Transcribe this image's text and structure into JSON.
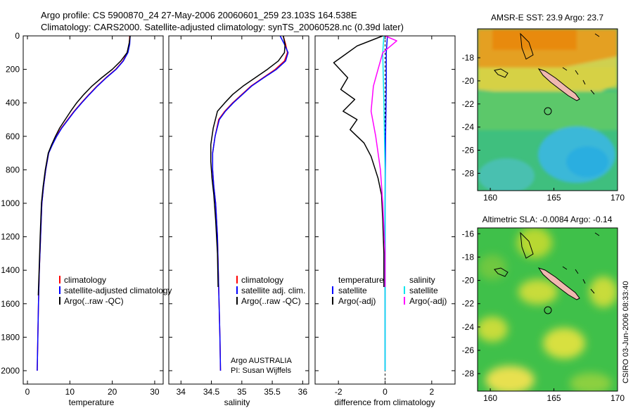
{
  "header": {
    "line1": "Argo profile: CS 5900870_24 27-May-2006 20060601_259 23.103S 164.538E",
    "line2": "Climatology: CARS2000. Satellite-adjusted climatology: synTS_20060528.nc (0.39d later)"
  },
  "colors": {
    "climatology": "#ff0000",
    "satellite": "#0000ff",
    "argo": "#000000",
    "sat_salinity": "#00e5ee",
    "argo_adj_salinity": "#ff00ff"
  },
  "chart_data": [
    {
      "type": "line",
      "id": "temperature",
      "xlabel": "temperature",
      "ylabel": "",
      "xlim": [
        -1,
        32
      ],
      "ylim": [
        2080,
        0
      ],
      "xticks": [
        0,
        10,
        20,
        30
      ],
      "yticks": [
        0,
        200,
        400,
        600,
        800,
        1000,
        1200,
        1400,
        1600,
        1800,
        2000
      ],
      "legend": [
        "climatology",
        "satellite-adjusted climatology",
        "Argo(..raw -QC)"
      ],
      "series": [
        {
          "name": "climatology",
          "color": "#ff0000",
          "x": [
            24.1,
            24.0,
            23.6,
            22.5,
            20.8,
            18.5,
            16.4,
            14.5,
            12.7,
            11.0,
            9.5,
            8.0,
            6.8,
            5.8,
            5.0,
            4.3,
            3.8,
            3.4,
            3.1,
            2.8,
            2.6,
            2.45,
            2.3
          ],
          "y": [
            0,
            50,
            100,
            150,
            200,
            250,
            300,
            350,
            400,
            450,
            500,
            550,
            600,
            650,
            700,
            800,
            900,
            1000,
            1200,
            1400,
            1600,
            1800,
            2000
          ]
        },
        {
          "name": "satellite-adjusted climatology",
          "color": "#0000ff",
          "x": [
            24.2,
            24.1,
            23.7,
            22.6,
            20.9,
            18.6,
            16.5,
            14.6,
            12.8,
            11.1,
            9.6,
            8.1,
            6.9,
            5.9,
            5.0,
            4.3,
            3.8,
            3.4,
            3.1,
            2.8,
            2.6,
            2.45,
            2.3
          ],
          "y": [
            0,
            50,
            100,
            150,
            200,
            250,
            300,
            350,
            400,
            450,
            500,
            550,
            600,
            650,
            700,
            800,
            900,
            1000,
            1200,
            1400,
            1600,
            1800,
            2000
          ]
        },
        {
          "name": "Argo(..raw -QC)",
          "color": "#000000",
          "x": [
            24.2,
            24.0,
            23.5,
            22.0,
            20.0,
            17.5,
            15.2,
            13.3,
            11.6,
            10.2,
            8.9,
            7.6,
            6.6,
            5.7,
            4.9,
            4.2,
            3.7,
            3.3,
            3.0,
            2.75,
            2.55
          ],
          "y": [
            0,
            40,
            100,
            150,
            200,
            250,
            300,
            350,
            400,
            450,
            500,
            550,
            600,
            650,
            700,
            800,
            900,
            1000,
            1200,
            1400,
            1550
          ]
        }
      ]
    },
    {
      "type": "line",
      "id": "salinity",
      "xlabel": "salinity",
      "ylabel": "",
      "xlim": [
        33.8,
        36.1
      ],
      "ylim": [
        2080,
        0
      ],
      "xticks": [
        34,
        34.5,
        35,
        35.5,
        36
      ],
      "yticks": [
        0,
        200,
        400,
        600,
        800,
        1000,
        1200,
        1400,
        1600,
        1800,
        2000
      ],
      "legend": [
        "climatology",
        "satellite adj. clim.",
        "Argo(..raw -QC)"
      ],
      "annotation": [
        "Argo AUSTRALIA",
        "PI: Susan Wijffels"
      ],
      "series": [
        {
          "name": "climatology",
          "color": "#ff0000",
          "x": [
            35.68,
            35.72,
            35.75,
            35.7,
            35.55,
            35.35,
            35.15,
            35.0,
            34.85,
            34.72,
            34.62,
            34.56,
            34.52,
            34.52,
            34.54,
            34.57,
            34.6,
            34.62,
            34.64,
            34.65
          ],
          "y": [
            0,
            50,
            100,
            150,
            200,
            250,
            300,
            350,
            400,
            450,
            500,
            600,
            700,
            800,
            900,
            1000,
            1200,
            1500,
            1800,
            2000
          ]
        },
        {
          "name": "satellite adj. clim.",
          "color": "#0000ff",
          "x": [
            35.63,
            35.7,
            35.76,
            35.72,
            35.57,
            35.36,
            35.16,
            35.01,
            34.86,
            34.73,
            34.63,
            34.56,
            34.52,
            34.52,
            34.54,
            34.57,
            34.6,
            34.62,
            34.64,
            34.65
          ],
          "y": [
            0,
            50,
            100,
            150,
            200,
            250,
            300,
            350,
            400,
            450,
            500,
            600,
            700,
            800,
            900,
            1000,
            1200,
            1500,
            1800,
            2000
          ]
        },
        {
          "name": "Argo(..raw -QC)",
          "color": "#000000",
          "x": [
            35.68,
            35.71,
            35.7,
            35.6,
            35.42,
            35.22,
            35.02,
            34.85,
            34.72,
            34.6,
            34.53,
            34.49,
            34.49,
            34.51,
            34.54,
            34.57,
            34.6,
            34.61
          ],
          "y": [
            0,
            50,
            100,
            150,
            200,
            250,
            300,
            350,
            400,
            450,
            550,
            650,
            750,
            850,
            950,
            1100,
            1300,
            1500
          ]
        }
      ]
    },
    {
      "type": "line",
      "id": "difference",
      "xlabel": "difference from climatology",
      "ylabel": "",
      "xlim": [
        -3,
        3
      ],
      "ylim": [
        2080,
        0
      ],
      "xticks": [
        -2,
        0,
        2
      ],
      "yticks": [
        0,
        200,
        400,
        600,
        800,
        1000,
        1200,
        1400,
        1600,
        1800,
        2000
      ],
      "legend": [
        "temperature",
        "satellite",
        "Argo(-adj)",
        "salinity",
        "satellite",
        "Argo(-adj)"
      ],
      "series": [
        {
          "name": "temperature satellite",
          "color": "#0000ff",
          "x": [
            0.1,
            0.05,
            0.05,
            0.02,
            0.0,
            0.0,
            0.0
          ],
          "y": [
            0,
            100,
            300,
            600,
            1000,
            1500,
            2000
          ]
        },
        {
          "name": "temperature Argo(-adj)",
          "color": "#000000",
          "x": [
            -0.1,
            -1.2,
            -1.8,
            -2.2,
            -1.6,
            -1.9,
            -1.3,
            -1.8,
            -1.2,
            -1.5,
            -0.9,
            -0.6,
            -0.3,
            -0.15,
            -0.1,
            -0.05,
            -0.05
          ],
          "y": [
            0,
            60,
            120,
            160,
            250,
            320,
            380,
            450,
            500,
            560,
            640,
            720,
            850,
            950,
            1100,
            1300,
            1500
          ]
        },
        {
          "name": "salinity satellite",
          "color": "#00e5ee",
          "x": [
            -0.05,
            -0.1,
            -0.05,
            0.0,
            0.0,
            0.0
          ],
          "y": [
            0,
            100,
            400,
            800,
            1500,
            2000
          ]
        },
        {
          "name": "salinity Argo(-adj)",
          "color": "#ff00ff",
          "x": [
            0.0,
            0.5,
            -0.1,
            -0.3,
            -0.5,
            -0.6,
            -0.4,
            -0.2,
            -0.1,
            0.0,
            0.0
          ],
          "y": [
            0,
            30,
            100,
            200,
            300,
            450,
            600,
            800,
            1000,
            1300,
            1500
          ]
        }
      ]
    },
    {
      "type": "heatmap",
      "id": "sst_map",
      "title": "AMSR-E SST: 23.9 Argo: 23.7",
      "xlim": [
        159,
        170
      ],
      "ylim": [
        -29.5,
        -15.5
      ],
      "xticks": [
        160,
        165,
        170
      ],
      "yticks": [
        -18,
        -20,
        -22,
        -24,
        -26,
        -28
      ],
      "argo_position": {
        "lon": 164.538,
        "lat": -23.103
      },
      "value": 23.9,
      "argo_value": 23.7
    },
    {
      "type": "heatmap",
      "id": "sla_map",
      "title": "Altimetric SLA: -0.0084 Argo: -0.14",
      "xlim": [
        159,
        170
      ],
      "ylim": [
        -29.5,
        -15.5
      ],
      "xticks": [
        160,
        165,
        170
      ],
      "yticks": [
        -16,
        -18,
        -20,
        -22,
        -24,
        -26,
        -28
      ],
      "argo_position": {
        "lon": 164.538,
        "lat": -23.103
      },
      "value": -0.0084,
      "argo_value": -0.14
    }
  ],
  "footer_stamp": "CSIRO 03-Jun-2006 08:33:40"
}
